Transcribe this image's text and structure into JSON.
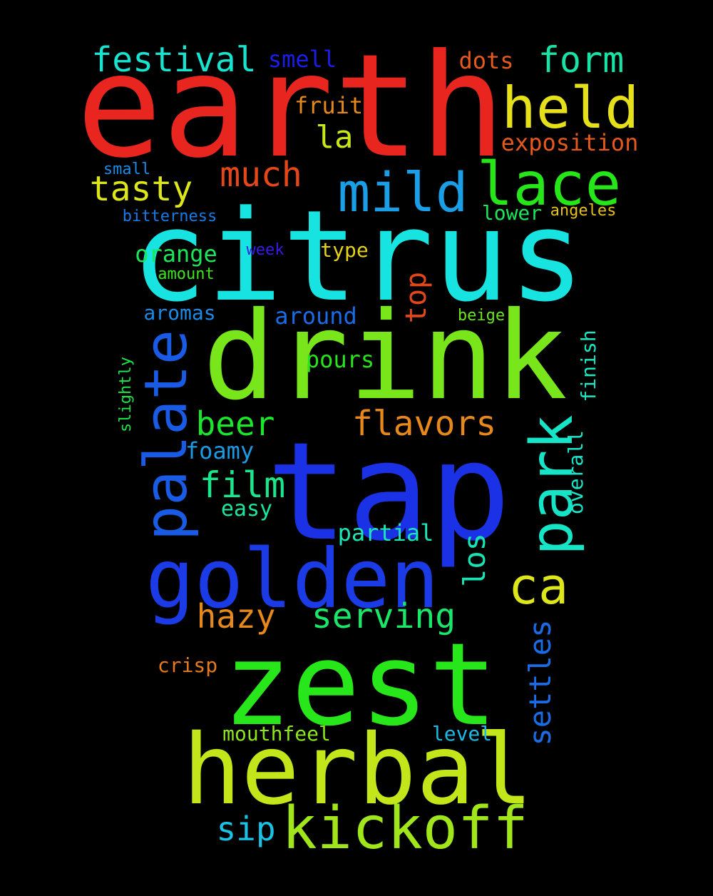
{
  "words": [
    {
      "text": "earth",
      "color": "#e8261f"
    },
    {
      "text": "citrus",
      "color": "#17e3e0"
    },
    {
      "text": "drink",
      "color": "#78e61a"
    },
    {
      "text": "tap",
      "color": "#1a31e6"
    },
    {
      "text": "zest",
      "color": "#27e61a"
    },
    {
      "text": "herbal",
      "color": "#c3e61a"
    },
    {
      "text": "golden",
      "color": "#1a3be6"
    },
    {
      "text": "palate",
      "color": "#1a5be6"
    },
    {
      "text": "kickoff",
      "color": "#a0e61a"
    },
    {
      "text": "held",
      "color": "#e6e01a"
    },
    {
      "text": "lace",
      "color": "#26e61a"
    },
    {
      "text": "mild",
      "color": "#1a9ee6"
    },
    {
      "text": "park",
      "color": "#17e3c6"
    },
    {
      "text": "ca",
      "color": "#dce61a"
    },
    {
      "text": "festival",
      "color": "#17e3cf"
    },
    {
      "text": "form",
      "color": "#17e3a6"
    },
    {
      "text": "flavors",
      "color": "#e6891a"
    },
    {
      "text": "serving",
      "color": "#1ae66a"
    },
    {
      "text": "tasty",
      "color": "#dce61a"
    },
    {
      "text": "much",
      "color": "#e6471a"
    },
    {
      "text": "beer",
      "color": "#1ae62c"
    },
    {
      "text": "film",
      "color": "#1ae68c"
    },
    {
      "text": "hazy",
      "color": "#e6891a"
    },
    {
      "text": "sip",
      "color": "#1ac3e6"
    },
    {
      "text": "settles",
      "color": "#1a6be6"
    },
    {
      "text": "los",
      "color": "#17e3b4"
    },
    {
      "text": "top",
      "color": "#e6471a"
    },
    {
      "text": "la",
      "color": "#c9e61a"
    },
    {
      "text": "smell",
      "color": "#1a1ee6"
    },
    {
      "text": "dots",
      "color": "#e65a1a"
    },
    {
      "text": "fruit",
      "color": "#e6891a"
    },
    {
      "text": "exposition",
      "color": "#e6591a"
    },
    {
      "text": "around",
      "color": "#1a6be6"
    },
    {
      "text": "pours",
      "color": "#26e61a"
    },
    {
      "text": "orange",
      "color": "#1ae65a"
    },
    {
      "text": "type",
      "color": "#e6d11a"
    },
    {
      "text": "aromas",
      "color": "#1a8be6"
    },
    {
      "text": "partial",
      "color": "#1ae6b7"
    },
    {
      "text": "foamy",
      "color": "#1a9be6"
    },
    {
      "text": "easy",
      "color": "#1ae6a0"
    },
    {
      "text": "mouthfeel",
      "color": "#8be61a"
    },
    {
      "text": "level",
      "color": "#1ab9e6"
    },
    {
      "text": "crisp",
      "color": "#e6791a"
    },
    {
      "text": "finish",
      "color": "#1ae6c0"
    },
    {
      "text": "overall",
      "color": "#1ae6c9"
    },
    {
      "text": "lower",
      "color": "#1ae65a"
    },
    {
      "text": "angeles",
      "color": "#e6c01a"
    },
    {
      "text": "small",
      "color": "#1a8be6"
    },
    {
      "text": "bitterness",
      "color": "#1a7be6"
    },
    {
      "text": "week",
      "color": "#3a1ae6"
    },
    {
      "text": "amount",
      "color": "#3ce61a"
    },
    {
      "text": "beige",
      "color": "#6ce61a"
    },
    {
      "text": "slightly",
      "color": "#1ae64a"
    }
  ]
}
